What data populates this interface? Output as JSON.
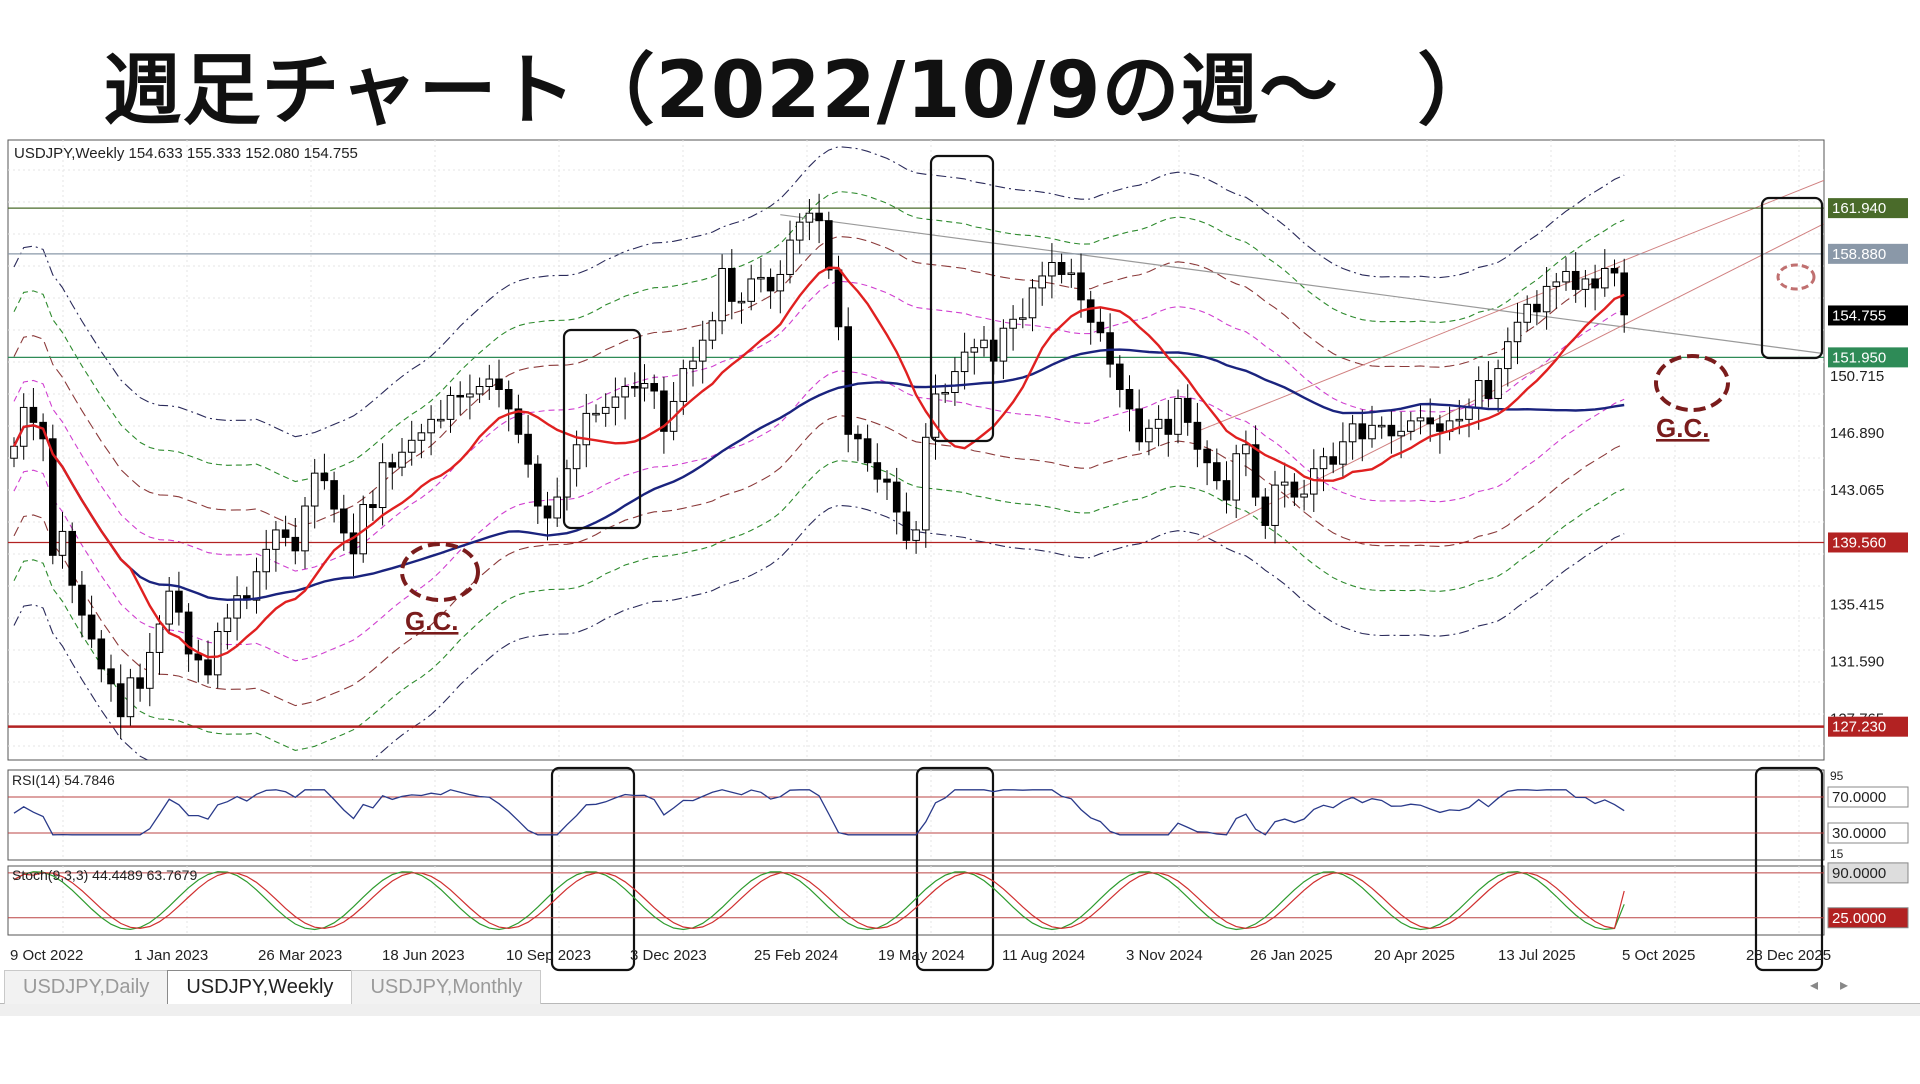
{
  "title": "週足チャート（2022/10/9の週～　）",
  "chart_data": {
    "type": "candlestick",
    "symbol_header": "USDJPY,Weekly  154.633 155.333 152.080 154.755",
    "price_labels": [
      "150.715",
      "146.890",
      "143.065",
      "139.560",
      "135.415",
      "131.590",
      "127.765"
    ],
    "ylim": [
      125,
      166.5
    ],
    "x_labels": [
      "9 Oct 2022",
      "1 Jan 2023",
      "26 Mar 2023",
      "18 Jun 2023",
      "10 Sep 2023",
      "3 Dec 2023",
      "25 Feb 2024",
      "19 May 2024",
      "11 Aug 2024",
      "3 Nov 2024",
      "26 Jan 2025",
      "20 Apr 2025",
      "13 Jul 2025",
      "5 Oct 2025",
      "28 Dec 2025"
    ],
    "horizontal_lines": [
      {
        "value": 161.94,
        "label": "161.940",
        "color": "#4a6b2a"
      },
      {
        "value": 158.88,
        "label": "158.880",
        "color": "#8a98a8"
      },
      {
        "value": 154.755,
        "label": "154.755",
        "color": "#000000"
      },
      {
        "value": 151.95,
        "label": "151.950",
        "color": "#2e8b57"
      },
      {
        "value": 139.56,
        "label": "139.560",
        "color": "#b22222"
      },
      {
        "value": 127.23,
        "label": "127.230",
        "color": "#b22222"
      }
    ],
    "close_series": [
      146.0,
      148.6,
      147.6,
      146.5,
      138.7,
      140.3,
      136.7,
      134.7,
      133.1,
      131.1,
      130.1,
      127.9,
      130.5,
      129.8,
      132.2,
      134.1,
      136.3,
      134.9,
      132.1,
      131.7,
      130.7,
      133.6,
      134.5,
      136.0,
      135.7,
      137.6,
      139.1,
      140.4,
      139.9,
      139.0,
      142.0,
      144.2,
      143.7,
      141.8,
      140.2,
      138.8,
      142.1,
      141.9,
      144.9,
      144.6,
      145.6,
      146.4,
      146.9,
      147.8,
      147.8,
      149.4,
      149.3,
      149.5,
      150.0,
      150.5,
      149.8,
      148.5,
      146.8,
      144.8,
      142.0,
      141.2,
      142.6,
      144.5,
      146.1,
      148.2,
      148.2,
      148.6,
      149.3,
      150.0,
      149.9,
      150.2,
      149.7,
      147.0,
      149.0,
      151.2,
      151.7,
      153.1,
      154.4,
      157.9,
      155.7,
      155.7,
      157.2,
      157.3,
      156.4,
      157.5,
      159.8,
      161.0,
      161.6,
      161.1,
      157.8,
      154.0,
      146.8,
      146.5,
      144.9,
      143.8,
      143.6,
      141.6,
      139.7,
      140.4,
      146.6,
      149.5,
      149.6,
      151.0,
      152.3,
      152.6,
      153.1,
      151.7,
      153.9,
      154.5,
      154.6,
      156.6,
      157.4,
      158.3,
      157.5,
      157.6,
      155.8,
      154.3,
      153.6,
      151.5,
      149.8,
      148.5,
      146.3,
      147.2,
      147.8,
      146.8,
      149.2,
      147.6,
      145.8,
      144.9,
      143.7,
      142.4,
      145.5,
      146.1,
      142.6,
      140.7,
      143.4,
      143.6,
      142.6,
      142.8,
      144.5,
      145.3,
      144.8,
      146.3,
      147.5,
      146.5,
      147.4,
      147.4,
      146.7,
      147.0,
      147.7,
      147.9,
      147.5,
      147.0,
      147.7,
      147.8,
      148.6,
      150.4,
      149.2,
      151.2,
      153.0,
      154.3,
      155.5,
      155.0,
      156.7,
      157.0,
      157.7,
      156.5,
      157.2,
      156.6,
      157.9,
      157.6,
      154.8
    ],
    "sma_red": "13-week moving average",
    "sma_navy": "52-week moving average",
    "annotations": [
      "G.C.",
      "G.C."
    ],
    "indicators": [
      {
        "name": "RSI(14) 54.7846",
        "labels": [
          "70.0000",
          "30.0000"
        ],
        "levels": [
          70,
          30
        ],
        "last": 54.7846,
        "corner_ticks": [
          "95",
          "15"
        ]
      },
      {
        "name": "Stoch(9,3,3) 44.4489 63.7679",
        "labels": [
          "90.0000",
          "25.0000"
        ],
        "levels": [
          90,
          25
        ],
        "main": 44.4489,
        "signal": 63.7679
      }
    ],
    "colors": {
      "up": "#ffffff",
      "down": "#000000",
      "sma_red": "#e02020",
      "sma_navy": "#1a237e",
      "bands_green": "#2e8b2e",
      "bands_magenta": "#d040d0",
      "bands_brown": "#8b3a3a",
      "bands_navy": "#2a2a5a",
      "gc": "#7a1c1c"
    }
  },
  "tabs": [
    "USDJPY,Daily",
    "USDJPY,Weekly",
    "USDJPY,Monthly"
  ]
}
